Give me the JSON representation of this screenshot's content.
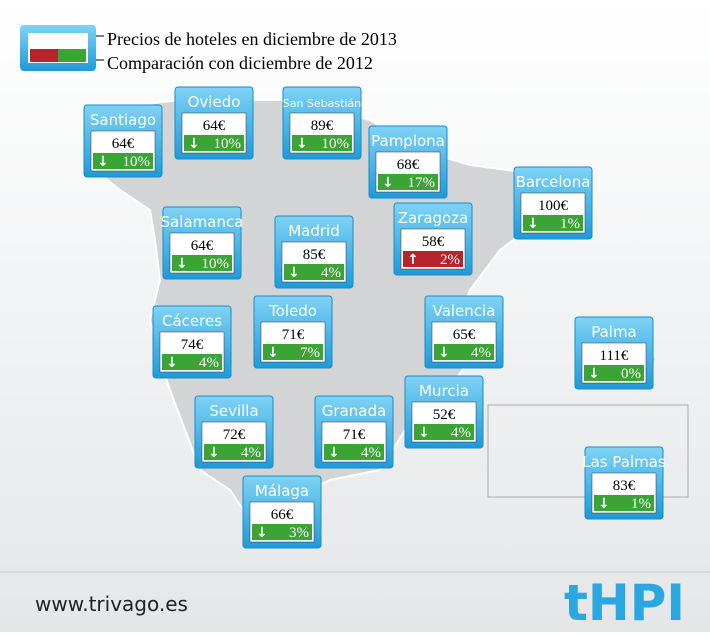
{
  "legend": {
    "price": "Precios de hoteles en diciembre de 2013",
    "change": "Comparación con diciembre de 2012"
  },
  "cities": [
    {
      "name": "Santiago",
      "price": "64€",
      "change": "10%",
      "direction": "down"
    },
    {
      "name": "Oviedo",
      "price": "64€",
      "change": "10%",
      "direction": "down"
    },
    {
      "name": "San Sebastián",
      "price": "89€",
      "change": "10%",
      "direction": "down"
    },
    {
      "name": "Pamplona",
      "price": "68€",
      "change": "17%",
      "direction": "down"
    },
    {
      "name": "Barcelona",
      "price": "100€",
      "change": "1%",
      "direction": "down"
    },
    {
      "name": "Salamanca",
      "price": "64€",
      "change": "10%",
      "direction": "down"
    },
    {
      "name": "Madrid",
      "price": "85€",
      "change": "4%",
      "direction": "down"
    },
    {
      "name": "Zaragoza",
      "price": "58€",
      "change": "2%",
      "direction": "up"
    },
    {
      "name": "Valencia",
      "price": "65€",
      "change": "4%",
      "direction": "down"
    },
    {
      "name": "Cáceres",
      "price": "74€",
      "change": "4%",
      "direction": "down"
    },
    {
      "name": "Toledo",
      "price": "71€",
      "change": "7%",
      "direction": "down"
    },
    {
      "name": "Palma",
      "price": "111€",
      "change": "0%",
      "direction": "down"
    },
    {
      "name": "Sevilla",
      "price": "72€",
      "change": "4%",
      "direction": "down"
    },
    {
      "name": "Granada",
      "price": "71€",
      "change": "4%",
      "direction": "down"
    },
    {
      "name": "Murcia",
      "price": "52€",
      "change": "4%",
      "direction": "down"
    },
    {
      "name": "Las Palmas",
      "price": "83€",
      "change": "1%",
      "direction": "down"
    },
    {
      "name": "Málaga",
      "price": "66€",
      "change": "3%",
      "direction": "down"
    }
  ],
  "footer": {
    "url": "www.trivago.es",
    "brand": "tHPI"
  }
}
